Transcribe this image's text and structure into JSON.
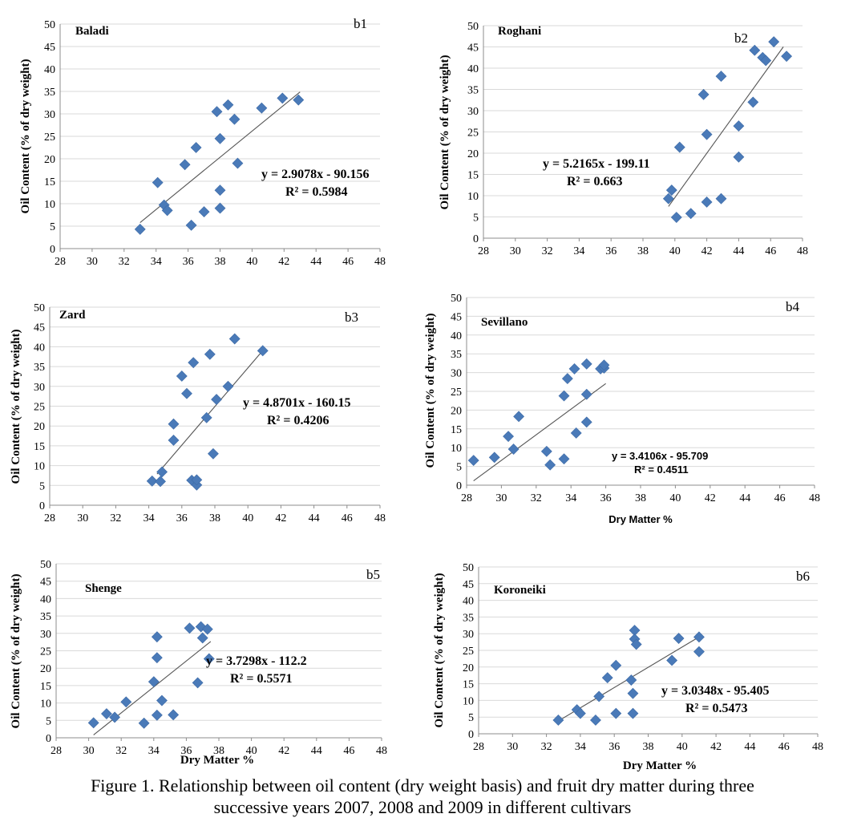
{
  "figure": {
    "caption_line1": "Figure 1. Relationship between oil content (dry weight basis) and fruit dry matter during three",
    "caption_line2": "successive years 2007, 2008 and 2009 in different cultivars"
  },
  "colors": {
    "marker": "#4a7ab8",
    "grid": "#d9d9d9",
    "trend": "#555555",
    "axis": "#8c8c8c",
    "text": "#000000"
  },
  "chart_data": [
    {
      "id": "b1",
      "type": "scatter",
      "title": "Baladi",
      "panel_label": "b1",
      "ylabel": "Oil Content (% of dry weight)",
      "xlabel": "",
      "xlim": [
        28,
        48
      ],
      "ylim": [
        0,
        50
      ],
      "xticks": [
        "28",
        "30",
        "32",
        "34",
        "36",
        "38",
        "40",
        "42",
        "44",
        "46",
        "48"
      ],
      "yticks": [
        "0",
        "5",
        "10",
        "15",
        "20",
        "25",
        "30",
        "35",
        "40",
        "45",
        "50"
      ],
      "equation": "y = 2.9078x - 90.156",
      "r2": "R² = 0.5984",
      "trend": {
        "slope": 2.9078,
        "intercept": -90.156,
        "x_start": 33.0,
        "x_end": 43.0
      },
      "points": [
        [
          33.0,
          4.3
        ],
        [
          34.1,
          14.7
        ],
        [
          34.5,
          9.7
        ],
        [
          34.7,
          8.5
        ],
        [
          35.8,
          18.7
        ],
        [
          36.2,
          5.2
        ],
        [
          36.5,
          22.5
        ],
        [
          37.0,
          8.2
        ],
        [
          37.8,
          30.5
        ],
        [
          38.0,
          24.5
        ],
        [
          38.0,
          13.0
        ],
        [
          38.0,
          9.0
        ],
        [
          38.5,
          32.0
        ],
        [
          38.9,
          28.8
        ],
        [
          39.1,
          19.0
        ],
        [
          40.6,
          31.3
        ],
        [
          41.9,
          33.5
        ],
        [
          42.9,
          33.1
        ]
      ]
    },
    {
      "id": "b2",
      "type": "scatter",
      "title": "Roghani",
      "panel_label": "b2",
      "ylabel": "Oil Content (% of dry weight)",
      "xlabel": "",
      "xlim": [
        28,
        48
      ],
      "ylim": [
        0,
        50
      ],
      "xticks": [
        "28",
        "30",
        "32",
        "34",
        "36",
        "38",
        "40",
        "42",
        "44",
        "46",
        "48"
      ],
      "yticks": [
        "0",
        "5",
        "10",
        "15",
        "20",
        "25",
        "30",
        "35",
        "40",
        "45",
        "50"
      ],
      "equation": "y = 5.2165x - 199.11",
      "r2": "R² = 0.663",
      "trend": {
        "slope": 5.2165,
        "intercept": -199.11,
        "x_start": 39.6,
        "x_end": 46.8
      },
      "points": [
        [
          39.6,
          9.3
        ],
        [
          39.8,
          11.3
        ],
        [
          40.1,
          4.9
        ],
        [
          40.3,
          21.4
        ],
        [
          41.0,
          5.8
        ],
        [
          41.8,
          33.8
        ],
        [
          42.0,
          24.4
        ],
        [
          42.0,
          8.5
        ],
        [
          42.9,
          38.1
        ],
        [
          42.9,
          9.3
        ],
        [
          44.0,
          26.4
        ],
        [
          44.0,
          19.1
        ],
        [
          44.9,
          32.0
        ],
        [
          45.0,
          44.2
        ],
        [
          45.5,
          42.5
        ],
        [
          45.7,
          41.8
        ],
        [
          46.2,
          46.2
        ],
        [
          47.0,
          42.8
        ]
      ]
    },
    {
      "id": "b3",
      "type": "scatter",
      "title": "Zard",
      "panel_label": "b3",
      "ylabel": "Oil Content (% of dry weight)",
      "xlabel": "",
      "xlim": [
        28,
        48
      ],
      "ylim": [
        0,
        50
      ],
      "xticks": [
        "28",
        "30",
        "32",
        "34",
        "36",
        "38",
        "40",
        "42",
        "44",
        "46",
        "48"
      ],
      "yticks": [
        "0",
        "5",
        "10",
        "15",
        "20",
        "25",
        "30",
        "35",
        "40",
        "45",
        "50"
      ],
      "equation": "y = 4.8701x - 160.15",
      "r2": "R² = 0.4206",
      "trend": {
        "slope": 4.8701,
        "intercept": -160.15,
        "x_start": 34.5,
        "x_end": 41.0
      },
      "points": [
        [
          34.2,
          6.1
        ],
        [
          34.7,
          6.0
        ],
        [
          34.8,
          8.4
        ],
        [
          35.5,
          16.4
        ],
        [
          35.5,
          20.5
        ],
        [
          36.0,
          32.6
        ],
        [
          36.3,
          28.2
        ],
        [
          36.6,
          6.3
        ],
        [
          36.7,
          36.0
        ],
        [
          36.9,
          5.1
        ],
        [
          36.9,
          6.4
        ],
        [
          37.5,
          22.1
        ],
        [
          37.7,
          38.1
        ],
        [
          37.9,
          13.0
        ],
        [
          38.1,
          26.7
        ],
        [
          38.8,
          30.0
        ],
        [
          39.2,
          42.0
        ],
        [
          40.9,
          39.0
        ]
      ]
    },
    {
      "id": "b4",
      "type": "scatter",
      "title": "Sevillano",
      "panel_label": "b4",
      "ylabel": "Oil Content (% of dry weight)",
      "xlabel": "Dry Matter %",
      "xlim": [
        28,
        48
      ],
      "ylim": [
        0,
        50
      ],
      "xticks": [
        "28",
        "30",
        "32",
        "34",
        "36",
        "38",
        "40",
        "42",
        "44",
        "46",
        "48"
      ],
      "yticks": [
        "0",
        "5",
        "10",
        "15",
        "20",
        "25",
        "30",
        "35",
        "40",
        "45",
        "50"
      ],
      "equation": "y = 3.4106x - 95.709",
      "r2": "R² = 0.4511",
      "trend": {
        "slope": 3.4106,
        "intercept": -95.709,
        "x_start": 28.4,
        "x_end": 36.0
      },
      "points": [
        [
          28.4,
          6.6
        ],
        [
          29.6,
          7.4
        ],
        [
          30.4,
          13.0
        ],
        [
          30.7,
          9.6
        ],
        [
          31.0,
          18.3
        ],
        [
          32.6,
          9.0
        ],
        [
          32.8,
          5.4
        ],
        [
          33.6,
          23.8
        ],
        [
          33.6,
          7.0
        ],
        [
          33.8,
          28.4
        ],
        [
          34.2,
          31.0
        ],
        [
          34.3,
          13.9
        ],
        [
          34.9,
          32.3
        ],
        [
          34.9,
          24.2
        ],
        [
          34.9,
          16.8
        ],
        [
          35.7,
          31.0
        ],
        [
          35.9,
          31.2
        ],
        [
          35.9,
          32.0
        ]
      ]
    },
    {
      "id": "b5",
      "type": "scatter",
      "title": "Shenge",
      "panel_label": "b5",
      "ylabel": "Oil Content (% of dry weight)",
      "xlabel": "Dry Matter %",
      "xlim": [
        28,
        48
      ],
      "ylim": [
        0,
        50
      ],
      "xticks": [
        "28",
        "30",
        "32",
        "34",
        "36",
        "38",
        "40",
        "42",
        "44",
        "46",
        "48"
      ],
      "yticks": [
        "0",
        "5",
        "10",
        "15",
        "20",
        "25",
        "30",
        "35",
        "40",
        "45",
        "50"
      ],
      "equation": "y = 3.7298x - 112.2",
      "r2": "R² = 0.5571",
      "trend": {
        "slope": 3.7298,
        "intercept": -112.2,
        "x_start": 30.3,
        "x_end": 37.5
      },
      "points": [
        [
          30.3,
          4.3
        ],
        [
          31.1,
          6.9
        ],
        [
          31.6,
          5.9
        ],
        [
          32.3,
          10.3
        ],
        [
          33.4,
          4.2
        ],
        [
          34.0,
          16.1
        ],
        [
          34.2,
          29.0
        ],
        [
          34.2,
          23.0
        ],
        [
          34.2,
          6.5
        ],
        [
          34.5,
          10.7
        ],
        [
          35.2,
          6.6
        ],
        [
          36.2,
          31.5
        ],
        [
          36.7,
          15.8
        ],
        [
          36.9,
          31.9
        ],
        [
          37.0,
          28.7
        ],
        [
          37.3,
          31.2
        ],
        [
          37.4,
          22.7
        ]
      ]
    },
    {
      "id": "b6",
      "type": "scatter",
      "title": "Koroneiki",
      "panel_label": "b6",
      "ylabel": "Oil Content (% of dry weight)",
      "xlabel": "Dry Matter %",
      "xlim": [
        28,
        48
      ],
      "ylim": [
        0,
        50
      ],
      "xticks": [
        "28",
        "30",
        "32",
        "34",
        "36",
        "38",
        "40",
        "42",
        "44",
        "46",
        "48"
      ],
      "yticks": [
        "0",
        "5",
        "10",
        "15",
        "20",
        "25",
        "30",
        "35",
        "40",
        "45",
        "50"
      ],
      "equation": "y = 3.0348x - 95.405",
      "r2": "R² = 0.5473",
      "trend": {
        "slope": 3.0348,
        "intercept": -95.405,
        "x_start": 32.7,
        "x_end": 41.0
      },
      "points": [
        [
          32.7,
          4.1
        ],
        [
          33.8,
          7.2
        ],
        [
          34.0,
          6.1
        ],
        [
          34.9,
          4.1
        ],
        [
          35.1,
          11.2
        ],
        [
          35.6,
          16.8
        ],
        [
          36.1,
          20.5
        ],
        [
          36.1,
          6.1
        ],
        [
          37.0,
          16.1
        ],
        [
          37.1,
          12.1
        ],
        [
          37.1,
          6.1
        ],
        [
          37.2,
          31.0
        ],
        [
          37.2,
          28.4
        ],
        [
          37.3,
          26.8
        ],
        [
          39.4,
          22.0
        ],
        [
          39.8,
          28.6
        ],
        [
          41.0,
          29.0
        ],
        [
          41.0,
          24.6
        ]
      ]
    }
  ]
}
